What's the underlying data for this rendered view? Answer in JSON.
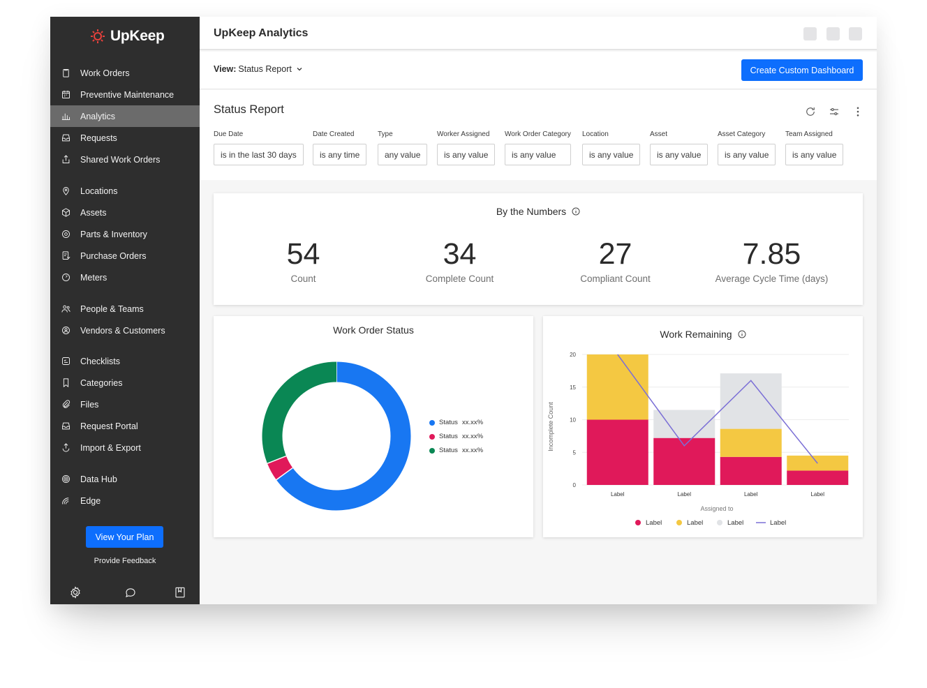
{
  "brand": {
    "name": "UpKeep"
  },
  "colors": {
    "accent": "#0d6efd",
    "sidebar": "#2e2e2e",
    "blue": "#1877f2",
    "red": "#e0195a",
    "green": "#0a8754",
    "yellow": "#f4c842",
    "gray": "#e1e3e6",
    "line": "#7b6fd6"
  },
  "sidebar": {
    "items": [
      {
        "label": "Work Orders",
        "icon": "clipboard-icon"
      },
      {
        "label": "Preventive Maintenance",
        "icon": "calendar-icon"
      },
      {
        "label": "Analytics",
        "icon": "bar-chart-icon"
      },
      {
        "label": "Requests",
        "icon": "inbox-icon"
      },
      {
        "label": "Shared Work Orders",
        "icon": "share-icon"
      },
      {
        "label": "Locations",
        "icon": "location-pin-icon"
      },
      {
        "label": "Assets",
        "icon": "cube-icon"
      },
      {
        "label": "Parts & Inventory",
        "icon": "gear-part-icon"
      },
      {
        "label": "Purchase Orders",
        "icon": "purchase-order-icon"
      },
      {
        "label": "Meters",
        "icon": "meter-icon"
      },
      {
        "label": "People & Teams",
        "icon": "people-icon"
      },
      {
        "label": "Vendors & Customers",
        "icon": "vendor-icon"
      },
      {
        "label": "Checklists",
        "icon": "checklist-icon"
      },
      {
        "label": "Categories",
        "icon": "bookmark-icon"
      },
      {
        "label": "Files",
        "icon": "paperclip-icon"
      },
      {
        "label": "Request Portal",
        "icon": "portal-icon"
      },
      {
        "label": "Import & Export",
        "icon": "import-export-icon"
      },
      {
        "label": "Data Hub",
        "icon": "data-hub-icon"
      },
      {
        "label": "Edge",
        "icon": "edge-icon"
      }
    ],
    "active_index": 2,
    "plan_button": "View Your Plan",
    "feedback": "Provide Feedback"
  },
  "header": {
    "title": "UpKeep Analytics"
  },
  "viewbar": {
    "view_prefix": "View:",
    "view_value": "Status Report",
    "create_button": "Create Custom Dashboard"
  },
  "report": {
    "title": "Status Report",
    "filters": [
      {
        "label": "Due Date",
        "value": "is in the last 30 days"
      },
      {
        "label": "Date Created",
        "value": "is any time"
      },
      {
        "label": "Type",
        "value": "any value"
      },
      {
        "label": "Worker Assigned",
        "value": "is any value"
      },
      {
        "label": "Work Order Category",
        "value": "is any value"
      },
      {
        "label": "Location",
        "value": "is any value"
      },
      {
        "label": "Asset",
        "value": "is any value"
      },
      {
        "label": "Asset Category",
        "value": "is any value"
      },
      {
        "label": "Team Assigned",
        "value": "is any value"
      }
    ]
  },
  "numbers": {
    "title": "By the Numbers",
    "stats": [
      {
        "value": "54",
        "label": "Count"
      },
      {
        "value": "34",
        "label": "Complete Count"
      },
      {
        "value": "27",
        "label": "Compliant Count"
      },
      {
        "value": "7.85",
        "label": "Average Cycle Time (days)"
      }
    ]
  },
  "chart_data": [
    {
      "type": "pie",
      "title": "Work Order Status",
      "donut": true,
      "labels": [
        "Status xx.xx%",
        "Status xx.xx%",
        "Status xx.xx%"
      ],
      "legend_entries": [
        {
          "name": "Status",
          "value": "xx.xx%"
        },
        {
          "name": "Status",
          "value": "xx.xx%"
        },
        {
          "name": "Status",
          "value": "xx.xx%"
        }
      ],
      "values": [
        65,
        4,
        31
      ],
      "colors": [
        "#1877f2",
        "#e0195a",
        "#0a8754"
      ],
      "legend": "right"
    },
    {
      "type": "bar",
      "stacked": true,
      "title": "Work Remaining",
      "xlabel": "Assigned to",
      "ylabel": "Incomplete Count",
      "categories": [
        "Label",
        "Label",
        "Label",
        "Label"
      ],
      "ylim": [
        0,
        20
      ],
      "yticks": [
        0,
        5,
        10,
        15,
        20
      ],
      "grid": true,
      "legend": "bottom",
      "series": [
        {
          "name": "Label",
          "kind": "bar",
          "color": "#e0195a",
          "values": [
            10,
            7.2,
            4.3,
            2.2
          ]
        },
        {
          "name": "Label",
          "kind": "bar",
          "color": "#f4c842",
          "values": [
            10,
            0,
            4.3,
            2.3
          ]
        },
        {
          "name": "Label",
          "kind": "bar",
          "color": "#e1e3e6",
          "values": [
            0,
            4.3,
            8.5,
            0
          ]
        },
        {
          "name": "Label",
          "kind": "line",
          "color": "#7b6fd6",
          "values": [
            20,
            6,
            16,
            3.3
          ]
        }
      ]
    }
  ]
}
